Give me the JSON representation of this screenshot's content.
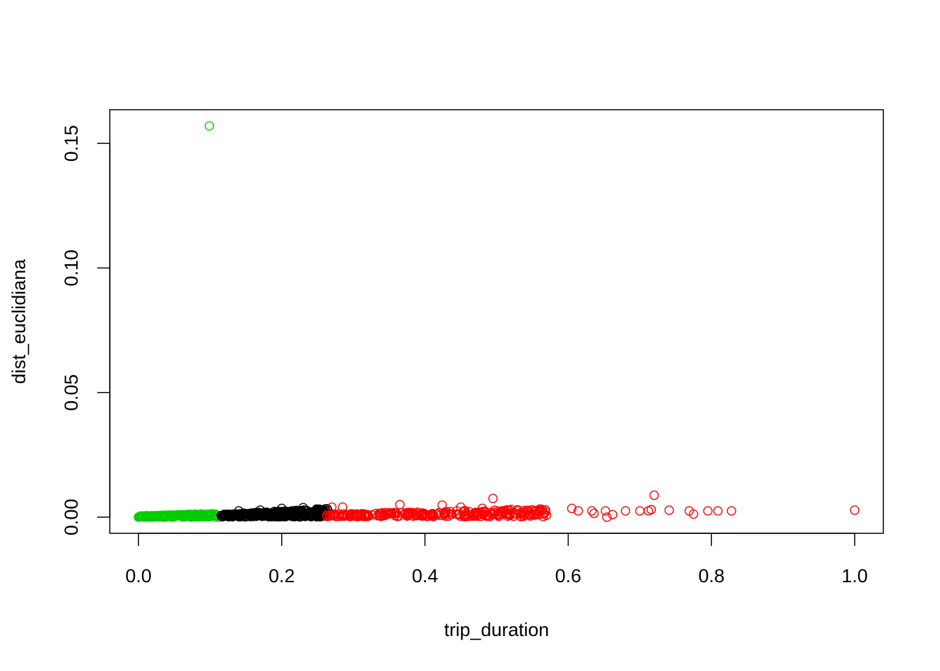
{
  "chart_data": {
    "type": "scatter",
    "title": "",
    "xlabel": "trip_duration",
    "ylabel": "dist_euclidiana",
    "xlim": [
      -0.04,
      1.04
    ],
    "ylim": [
      -0.0065,
      0.1635
    ],
    "x_ticks": [
      {
        "value": 0.0,
        "label": "0.0"
      },
      {
        "value": 0.2,
        "label": "0.2"
      },
      {
        "value": 0.4,
        "label": "0.4"
      },
      {
        "value": 0.6,
        "label": "0.6"
      },
      {
        "value": 0.8,
        "label": "0.8"
      },
      {
        "value": 1.0,
        "label": "1.0"
      }
    ],
    "y_ticks": [
      {
        "value": 0.0,
        "label": "0.00"
      },
      {
        "value": 0.05,
        "label": "0.05"
      },
      {
        "value": 0.1,
        "label": "0.10"
      },
      {
        "value": 0.15,
        "label": "0.15"
      }
    ],
    "grid": false,
    "legend": "none",
    "marker": "open-circle",
    "series": [
      {
        "color": "#00cd00",
        "band": {
          "x_range": [
            0.0,
            0.11
          ],
          "y_range": [
            0.0,
            0.0015
          ],
          "count": 200
        },
        "points": [
          {
            "x": 0.0,
            "y": 0.0
          },
          {
            "x": 0.02,
            "y": 0.0002
          },
          {
            "x": 0.05,
            "y": 0.0005
          },
          {
            "x": 0.08,
            "y": 0.0008
          },
          {
            "x": 0.1,
            "y": 0.001
          },
          {
            "x": 0.112,
            "y": 0.0
          },
          {
            "x": 0.099,
            "y": 0.157
          }
        ]
      },
      {
        "color": "#000000",
        "band": {
          "x_range": [
            0.115,
            0.265
          ],
          "y_range": [
            0.0001,
            0.0035
          ],
          "count": 320
        },
        "points": [
          {
            "x": 0.14,
            "y": 0.0025
          },
          {
            "x": 0.2,
            "y": 0.0035
          },
          {
            "x": 0.23,
            "y": 0.0038
          },
          {
            "x": 0.17,
            "y": 0.0028
          },
          {
            "x": 0.25,
            "y": 0.003
          }
        ]
      },
      {
        "color": "#ff0000",
        "band": {
          "x_range": [
            0.262,
            0.57
          ],
          "y_range": [
            0.0002,
            0.0035
          ],
          "count": 260
        },
        "points": [
          {
            "x": 0.27,
            "y": 0.004
          },
          {
            "x": 0.285,
            "y": 0.004
          },
          {
            "x": 0.365,
            "y": 0.005
          },
          {
            "x": 0.424,
            "y": 0.0048
          },
          {
            "x": 0.495,
            "y": 0.0075
          },
          {
            "x": 0.45,
            "y": 0.004
          },
          {
            "x": 0.48,
            "y": 0.0035
          },
          {
            "x": 0.51,
            "y": 0.0025
          },
          {
            "x": 0.53,
            "y": 0.0025
          },
          {
            "x": 0.56,
            "y": 0.0025
          },
          {
            "x": 0.605,
            "y": 0.0035
          },
          {
            "x": 0.614,
            "y": 0.0025
          },
          {
            "x": 0.633,
            "y": 0.0025
          },
          {
            "x": 0.636,
            "y": 0.0015
          },
          {
            "x": 0.652,
            "y": 0.0025
          },
          {
            "x": 0.654,
            "y": 0.0
          },
          {
            "x": 0.662,
            "y": 0.001
          },
          {
            "x": 0.68,
            "y": 0.0025
          },
          {
            "x": 0.7,
            "y": 0.0025
          },
          {
            "x": 0.712,
            "y": 0.0025
          },
          {
            "x": 0.716,
            "y": 0.003
          },
          {
            "x": 0.72,
            "y": 0.0088
          },
          {
            "x": 0.741,
            "y": 0.0028
          },
          {
            "x": 0.769,
            "y": 0.0025
          },
          {
            "x": 0.775,
            "y": 0.0012
          },
          {
            "x": 0.795,
            "y": 0.0025
          },
          {
            "x": 0.809,
            "y": 0.0025
          },
          {
            "x": 0.828,
            "y": 0.0025
          },
          {
            "x": 1.0,
            "y": 0.0028
          }
        ]
      }
    ]
  }
}
